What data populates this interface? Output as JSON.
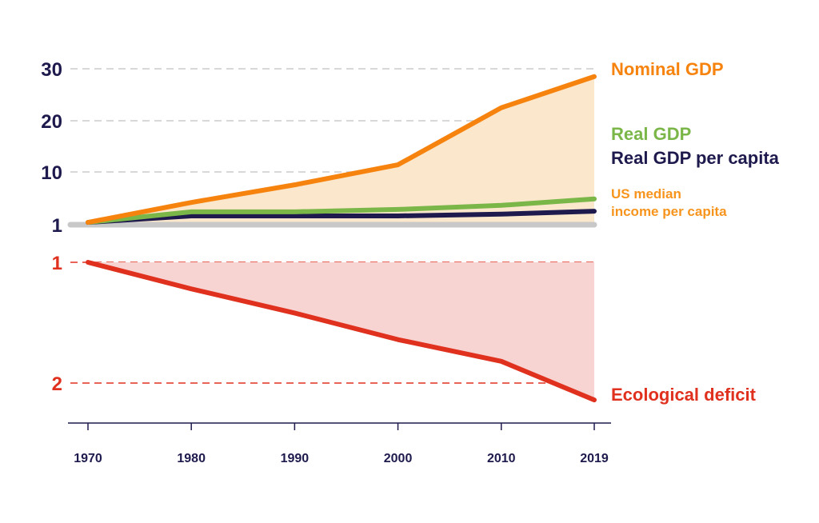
{
  "chart_data": [
    {
      "type": "line",
      "x": [
        1970,
        1980,
        1990,
        2000,
        2010,
        2019
      ],
      "yticks": [
        "30",
        "20",
        "10",
        "1"
      ],
      "ytick_values": [
        30,
        20,
        10,
        1
      ],
      "series": [
        {
          "name": "Nominal GDP",
          "values": [
            1.4,
            4.8,
            7.8,
            11.4,
            22.5,
            28.5
          ],
          "color": "#f7830f",
          "fill": "#fbe7cc"
        },
        {
          "name": "Real GDP",
          "values": [
            1.4,
            3.2,
            3.2,
            3.6,
            4.3,
            5.4
          ],
          "color": "#7ab648"
        },
        {
          "name": "Real GDP per capita",
          "values": [
            1.4,
            2.5,
            2.5,
            2.5,
            2.8,
            3.3
          ],
          "color": "#1e1a4d"
        },
        {
          "name": "US median income per capita",
          "values": [
            1,
            1,
            1,
            1,
            1,
            1
          ],
          "color": "#c8c8c8",
          "label_color": "#f7941d"
        }
      ],
      "grid": "dashed horizontal"
    },
    {
      "type": "line",
      "x": [
        1970,
        1980,
        1990,
        2000,
        2010,
        2019
      ],
      "yticks": [
        "1",
        "2"
      ],
      "ytick_values": [
        1,
        2
      ],
      "inverted": true,
      "series": [
        {
          "name": "Ecological deficit",
          "values": [
            1.0,
            1.22,
            1.42,
            1.64,
            1.82,
            2.14
          ],
          "color": "#e0311f",
          "fill": "#f7d4d2"
        }
      ],
      "xtick_labels": [
        "1970",
        "1980",
        "1990",
        "2000",
        "2010",
        "2019"
      ]
    }
  ]
}
